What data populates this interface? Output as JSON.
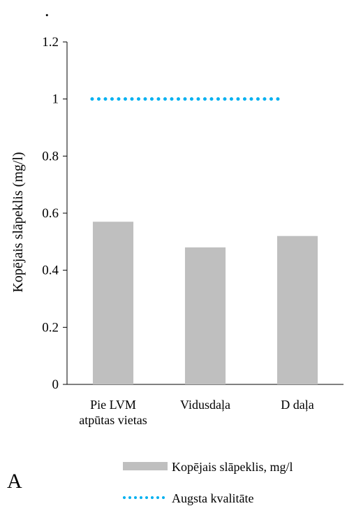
{
  "corner_mark": ".",
  "panel_letter": "A",
  "chart_data": {
    "type": "bar",
    "title": "",
    "xlabel": "",
    "ylabel": "Kopējais slāpeklis (mg/l)",
    "categories": [
      "Pie LVM atpūtas vietas",
      "Vidusdaļa",
      "D daļa"
    ],
    "category_lines": [
      [
        "Pie LVM",
        "atpūtas vietas"
      ],
      [
        "Vidusdaļa"
      ],
      [
        "D daļa"
      ]
    ],
    "series": [
      {
        "name": "Kopējais slāpeklis, mg/l",
        "type": "bar",
        "values": [
          0.57,
          0.48,
          0.52
        ],
        "color": "#bfbfbf"
      },
      {
        "name": "Augsta kvalitāte",
        "type": "line",
        "style": "dotted",
        "values": [
          1.0,
          1.0,
          1.0
        ],
        "color": "#00b0f0"
      }
    ],
    "ylim": [
      0,
      1.2
    ],
    "yticks": [
      "0",
      "0.2",
      "0.4",
      "0.6",
      "0.8",
      "1",
      "1.2"
    ],
    "grid": false,
    "legend": "bottom"
  }
}
